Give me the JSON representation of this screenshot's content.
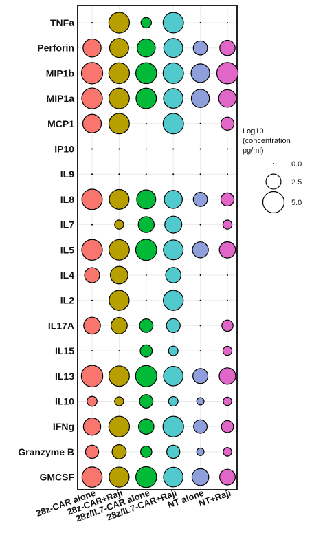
{
  "chart_data": {
    "type": "dot-matrix",
    "rows": [
      "TNFa",
      "Perforin",
      "MIP1b",
      "MIP1a",
      "MCP1",
      "IP10",
      "IL9",
      "IL8",
      "IL7",
      "IL5",
      "IL4",
      "IL2",
      "IL17A",
      "IL15",
      "IL13",
      "IL10",
      "IFNg",
      "Granzyme B",
      "GMCSF"
    ],
    "columns": [
      "28z-CAR alone",
      "28z-CAR+Raji",
      "28z/IL7-CAR alone",
      "28z/IL7-CAR+Raji",
      "NT alone",
      "NT+Raji"
    ],
    "column_colors": [
      "#f8766d",
      "#b79f00",
      "#00ba38",
      "#52c9cc",
      "#8f9fdc",
      "#e066c8"
    ],
    "values": [
      [
        0.0,
        4.7,
        1.2,
        4.6,
        0.0,
        0.0
      ],
      [
        3.6,
        4.0,
        3.6,
        4.0,
        2.2,
        2.6
      ],
      [
        5.0,
        4.7,
        4.8,
        4.6,
        3.8,
        5.0
      ],
      [
        4.7,
        4.6,
        4.6,
        4.2,
        3.6,
        3.4
      ],
      [
        3.8,
        4.6,
        0.0,
        4.6,
        0.0,
        1.9
      ],
      [
        0.0,
        0.0,
        0.0,
        0.0,
        0.0,
        0.0
      ],
      [
        0.0,
        0.0,
        0.0,
        0.0,
        0.0,
        0.0
      ],
      [
        4.6,
        4.3,
        4.0,
        3.6,
        2.2,
        1.9
      ],
      [
        0.0,
        0.9,
        2.8,
        3.2,
        0.0,
        0.9
      ],
      [
        4.7,
        4.6,
        4.9,
        4.3,
        2.8,
        2.9
      ],
      [
        2.5,
        3.4,
        0.0,
        2.6,
        0.0,
        0.0
      ],
      [
        0.0,
        4.4,
        0.0,
        4.4,
        0.0,
        0.0
      ],
      [
        3.1,
        2.9,
        2.0,
        2.1,
        0.0,
        1.4
      ],
      [
        0.0,
        0.0,
        1.6,
        1.0,
        0.0,
        0.9
      ],
      [
        5.1,
        4.6,
        5.0,
        4.2,
        2.5,
        3.0
      ],
      [
        1.1,
        0.9,
        2.0,
        1.0,
        0.6,
        0.8
      ],
      [
        3.3,
        4.7,
        2.6,
        4.7,
        2.0,
        1.6
      ],
      [
        1.9,
        2.2,
        1.4,
        1.9,
        0.6,
        0.8
      ],
      [
        4.5,
        4.4,
        4.8,
        4.2,
        3.1,
        2.7
      ]
    ],
    "legend": {
      "title_lines": [
        "Log10",
        "(concentration",
        "pg/ml)"
      ],
      "values": [
        0.0,
        2.5,
        5.0
      ],
      "labels": [
        "0.0",
        "2.5",
        "5.0"
      ],
      "placement": "right"
    },
    "xlabel": "",
    "ylabel": "",
    "grid": true
  }
}
